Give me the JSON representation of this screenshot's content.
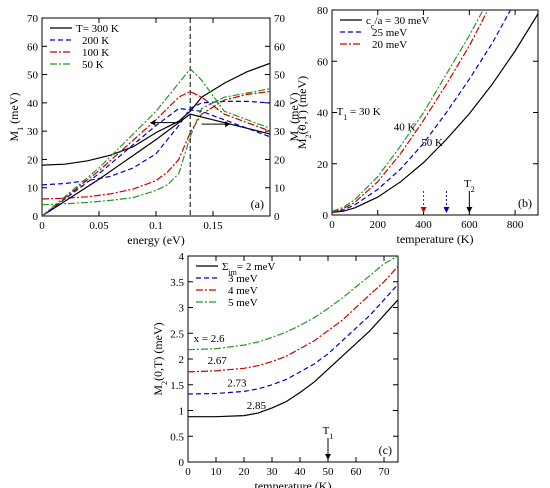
{
  "chart_data": [
    {
      "id": "a",
      "type": "line",
      "panel_label": "(a)",
      "xlabel": "energy (eV)",
      "ylabel": "M",
      "ylabel_sub": "1",
      "ylabel_unit": " (meV)",
      "ylabel_right": "M",
      "ylabel_right_sub": "2",
      "ylabel_right_unit": " (meV)",
      "xlim": [
        0,
        0.2
      ],
      "ylim": [
        0,
        70
      ],
      "xticks": [
        {
          "v": 0,
          "t": "0"
        },
        {
          "v": 0.05,
          "t": "0.05"
        },
        {
          "v": 0.1,
          "t": "0.1"
        },
        {
          "v": 0.15,
          "t": "0.15"
        }
      ],
      "yticks": [
        {
          "v": 0,
          "t": "0"
        },
        {
          "v": 10,
          "t": "10"
        },
        {
          "v": 20,
          "t": "20"
        },
        {
          "v": 30,
          "t": "30"
        },
        {
          "v": 40,
          "t": "40"
        },
        {
          "v": 50,
          "t": "50"
        },
        {
          "v": 60,
          "t": "60"
        },
        {
          "v": 70,
          "t": "70"
        }
      ],
      "yticks_right": [
        {
          "v": 0,
          "t": "0"
        },
        {
          "v": 10,
          "t": "10"
        },
        {
          "v": 20,
          "t": "20"
        },
        {
          "v": 30,
          "t": "30"
        },
        {
          "v": 40,
          "t": "40"
        },
        {
          "v": 50,
          "t": "50"
        },
        {
          "v": 60,
          "t": "60"
        },
        {
          "v": 70,
          "t": "70"
        }
      ],
      "vline_x": 0.13,
      "series": [
        {
          "name": "T= 300 K",
          "color": "#000000",
          "dash": "",
          "x": [
            0,
            0.02,
            0.04,
            0.06,
            0.08,
            0.1,
            0.12,
            0.13,
            0.14,
            0.16,
            0.18,
            0.2
          ],
          "y": [
            18,
            18.3,
            19.5,
            21.5,
            24.5,
            29.5,
            33.5,
            37,
            42,
            47,
            51,
            54
          ]
        },
        {
          "name": "200 K",
          "color": "#0000cc",
          "dash": "5,3",
          "x": [
            0,
            0.02,
            0.04,
            0.06,
            0.08,
            0.1,
            0.11,
            0.12,
            0.13,
            0.14,
            0.16,
            0.18,
            0.2
          ],
          "y": [
            11,
            11.5,
            12.5,
            14,
            17,
            22,
            27,
            32,
            38,
            40,
            40.5,
            40.5,
            40
          ]
        },
        {
          "name": "100 K",
          "color": "#cc0000",
          "dash": "7,2,2,2",
          "x": [
            0,
            0.02,
            0.04,
            0.06,
            0.08,
            0.1,
            0.11,
            0.12,
            0.13,
            0.14,
            0.16,
            0.18,
            0.2
          ],
          "y": [
            6,
            6.3,
            6.8,
            7.8,
            9.5,
            12.5,
            15.5,
            20,
            29.5,
            36,
            41,
            43,
            44
          ]
        },
        {
          "name": "50 K",
          "color": "#229922",
          "dash": "7,2,2,2",
          "x": [
            0,
            0.02,
            0.04,
            0.06,
            0.08,
            0.1,
            0.11,
            0.12,
            0.13,
            0.14,
            0.16,
            0.18,
            0.2
          ],
          "y": [
            4,
            4.3,
            4.8,
            5.5,
            6.5,
            9,
            11,
            15,
            28,
            38,
            42,
            43.5,
            45
          ]
        },
        {
          "name": "",
          "color": "#000000",
          "dash": "",
          "x": [
            0,
            0.05,
            0.1,
            0.13,
            0.15,
            0.2
          ],
          "y": [
            0,
            13,
            27,
            36,
            34,
            29
          ]
        },
        {
          "name": "",
          "color": "#0000cc",
          "dash": "5,3",
          "x": [
            0,
            0.05,
            0.1,
            0.12,
            0.14,
            0.16,
            0.2
          ],
          "y": [
            0,
            15,
            32,
            38,
            37,
            34,
            28
          ]
        },
        {
          "name": "",
          "color": "#cc0000",
          "dash": "7,2,2,2",
          "x": [
            0,
            0.05,
            0.1,
            0.12,
            0.13,
            0.14,
            0.16,
            0.2
          ],
          "y": [
            0,
            16,
            34,
            42,
            44,
            42,
            36,
            30
          ]
        },
        {
          "name": "",
          "color": "#229922",
          "dash": "7,2,2,2",
          "x": [
            0,
            0.05,
            0.1,
            0.12,
            0.13,
            0.14,
            0.16,
            0.2
          ],
          "y": [
            0,
            17,
            37,
            47,
            52,
            48,
            37,
            31
          ]
        }
      ]
    },
    {
      "id": "b",
      "type": "line",
      "panel_label": "(b)",
      "xlabel": "temperature (K)",
      "ylabel": "M",
      "ylabel_sub": "2",
      "ylabel_unit": "(0,T)  (meV)",
      "xlim": [
        0,
        900
      ],
      "ylim": [
        0,
        80
      ],
      "xticks": [
        {
          "v": 0,
          "t": "0"
        },
        {
          "v": 200,
          "t": "200"
        },
        {
          "v": 400,
          "t": "400"
        },
        {
          "v": 600,
          "t": "600"
        },
        {
          "v": 800,
          "t": "800"
        }
      ],
      "yticks": [
        {
          "v": 0,
          "t": "0"
        },
        {
          "v": 20,
          "t": "20"
        },
        {
          "v": 40,
          "t": "40"
        },
        {
          "v": 60,
          "t": "60"
        },
        {
          "v": 80,
          "t": "80"
        }
      ],
      "legend_first_pre": "c",
      "legend_first_sub": "c",
      "legend_first_post": "/a = 30 meV",
      "annotations": [
        {
          "text": "T",
          "sub": "1",
          "post": " = 30 K",
          "x": 20,
          "y": 39
        },
        {
          "text": "40 K",
          "x": 270,
          "y": 33
        },
        {
          "text": "50 K",
          "x": 390,
          "y": 27
        }
      ],
      "arrows": [
        {
          "x": 400,
          "color": "#cc0000",
          "dash": "2,2"
        },
        {
          "x": 500,
          "color": "#0000cc",
          "dash": "2,2"
        },
        {
          "x": 600,
          "color": "#000000",
          "dash": "",
          "label": "T",
          "label_sub": "2"
        }
      ],
      "series": [
        {
          "name": "c_c/a = 30 meV",
          "color": "#000000",
          "dash": "",
          "x": [
            0,
            50,
            100,
            200,
            300,
            400,
            500,
            600,
            700,
            800,
            900
          ],
          "y": [
            1,
            1.5,
            2.8,
            7,
            13,
            20.5,
            29.5,
            39.5,
            51,
            64,
            78.5
          ]
        },
        {
          "name": "25 meV",
          "color": "#0000cc",
          "dash": "5,3",
          "x": [
            0,
            50,
            100,
            200,
            300,
            400,
            500,
            600,
            700,
            780
          ],
          "y": [
            1,
            2,
            4,
            10,
            18,
            28,
            40,
            53,
            67,
            80
          ]
        },
        {
          "name": "20 meV",
          "color": "#cc0000",
          "dash": "7,2,2,2",
          "x": [
            0,
            50,
            100,
            200,
            300,
            400,
            500,
            600,
            675
          ],
          "y": [
            1,
            2.5,
            5,
            13,
            24,
            37,
            51,
            66,
            79
          ]
        },
        {
          "name": "",
          "color": "#229922",
          "dash": "7,2,2,2",
          "x": [
            0,
            50,
            100,
            200,
            300,
            400,
            500,
            600,
            660
          ],
          "y": [
            1.5,
            3,
            6,
            15,
            27,
            40,
            55,
            70,
            80
          ]
        }
      ]
    },
    {
      "id": "c",
      "type": "line",
      "panel_label": "(c)",
      "xlabel": "temperature (K)",
      "ylabel": "M",
      "ylabel_sub": "2",
      "ylabel_unit": "(0,T)  (meV)",
      "xlim": [
        0,
        75
      ],
      "ylim": [
        0,
        4
      ],
      "xticks": [
        {
          "v": 0,
          "t": "0"
        },
        {
          "v": 10,
          "t": "10"
        },
        {
          "v": 20,
          "t": "20"
        },
        {
          "v": 30,
          "t": "30"
        },
        {
          "v": 40,
          "t": "40"
        },
        {
          "v": 50,
          "t": "50"
        },
        {
          "v": 60,
          "t": "60"
        },
        {
          "v": 70,
          "t": "70"
        }
      ],
      "yticks": [
        {
          "v": 0,
          "t": "0"
        },
        {
          "v": 0.5,
          "t": "0.5"
        },
        {
          "v": 1,
          "t": "1"
        },
        {
          "v": 1.5,
          "t": "1.5"
        },
        {
          "v": 2,
          "t": "2"
        },
        {
          "v": 2.5,
          "t": "2.5"
        },
        {
          "v": 3,
          "t": "3"
        },
        {
          "v": 3.5,
          "t": "3.5"
        },
        {
          "v": 4,
          "t": "4"
        }
      ],
      "legend_first_pre": "Σ",
      "legend_first_sub": "im",
      "legend_first_post": "= 2 meV",
      "annotations": [
        {
          "text": "x = 2.6",
          "x": 2,
          "y": 2.33
        },
        {
          "text": "2.67",
          "x": 7,
          "y": 1.9
        },
        {
          "text": "2.73",
          "x": 14,
          "y": 1.47
        },
        {
          "text": "2.85",
          "x": 21,
          "y": 1.03
        }
      ],
      "arrows": [
        {
          "x": 50,
          "color": "#000000",
          "dash": "",
          "label": "T",
          "label_sub": "1"
        }
      ],
      "series": [
        {
          "name": "Σ_im = 2 meV",
          "color": "#000000",
          "dash": "",
          "x": [
            0,
            10,
            20,
            25,
            30,
            35,
            40,
            45,
            50,
            55,
            60,
            65,
            70,
            75
          ],
          "y": [
            0.88,
            0.88,
            0.9,
            0.95,
            1.05,
            1.17,
            1.35,
            1.55,
            1.8,
            2.05,
            2.3,
            2.55,
            2.85,
            3.15
          ]
        },
        {
          "name": "3 meV",
          "color": "#0000cc",
          "dash": "5,3",
          "x": [
            0,
            10,
            20,
            25,
            30,
            35,
            40,
            45,
            50,
            55,
            60,
            65,
            70,
            75
          ],
          "y": [
            1.32,
            1.33,
            1.37,
            1.42,
            1.5,
            1.6,
            1.75,
            1.9,
            2.1,
            2.35,
            2.6,
            2.85,
            3.15,
            3.45
          ]
        },
        {
          "name": "4 meV",
          "color": "#cc0000",
          "dash": "7,2,2,2",
          "x": [
            0,
            10,
            20,
            25,
            30,
            35,
            40,
            45,
            50,
            55,
            60,
            65,
            70,
            75
          ],
          "y": [
            1.75,
            1.77,
            1.82,
            1.87,
            1.95,
            2.05,
            2.2,
            2.35,
            2.55,
            2.75,
            3.0,
            3.25,
            3.5,
            3.8
          ]
        },
        {
          "name": "5 meV",
          "color": "#229922",
          "dash": "7,2,2,2",
          "x": [
            0,
            10,
            20,
            25,
            30,
            35,
            40,
            45,
            50,
            55,
            60,
            65,
            70,
            75
          ],
          "y": [
            2.18,
            2.2,
            2.27,
            2.33,
            2.42,
            2.52,
            2.65,
            2.8,
            2.98,
            3.18,
            3.4,
            3.62,
            3.85,
            4.0
          ]
        }
      ]
    }
  ]
}
